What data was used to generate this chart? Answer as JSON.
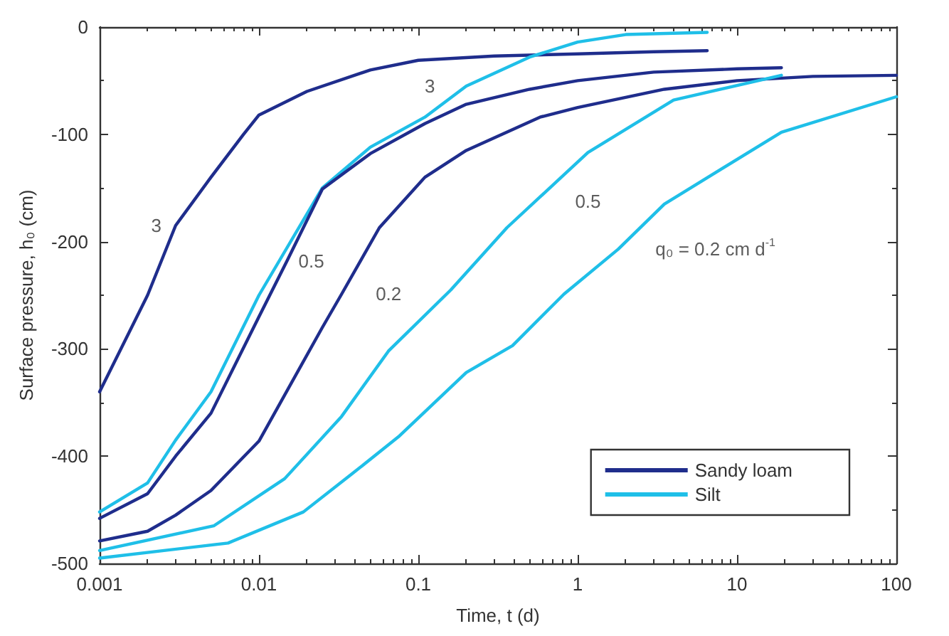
{
  "chart_data": {
    "type": "line",
    "xlabel": "Time, t (d)",
    "ylabel": "Surface pressure, h₀ (cm)",
    "log": "x",
    "xlim": [
      0.001,
      100
    ],
    "xticks": [
      0.001,
      0.01,
      0.1,
      1,
      10,
      100
    ],
    "ylim": [
      -500,
      0
    ],
    "yticks": [
      -500,
      -400,
      -300,
      -200,
      -100,
      0
    ],
    "grid": false,
    "legend": "bottom right",
    "marker": "none",
    "line_style": "solid",
    "series": [
      {
        "name": "Sandy loam",
        "color": "#1f2d8c",
        "x": [
          0.001,
          0.002,
          0.003,
          0.005,
          0.008,
          0.01,
          0.02,
          0.05,
          0.1,
          0.3,
          1,
          3,
          6.5
        ],
        "values": [
          -340,
          -250,
          -185,
          -140,
          -100,
          -82,
          -60,
          -40,
          -31,
          -27,
          -25,
          -23,
          -22
        ]
      },
      {
        "name": "Silt",
        "color": "#1fbfe8",
        "x": [
          0.001,
          0.002,
          0.003,
          0.005,
          0.01,
          0.025,
          0.05,
          0.11,
          0.2,
          0.5,
          1,
          2,
          6.5
        ],
        "values": [
          -452,
          -425,
          -385,
          -340,
          -250,
          -150,
          -112,
          -84,
          -55,
          -28,
          -14,
          -7,
          -5
        ]
      },
      {
        "color": "#1f2d8c",
        "x": [
          0.001,
          0.002,
          0.003,
          0.005,
          0.01,
          0.015,
          0.025,
          0.05,
          0.11,
          0.2,
          0.5,
          1,
          3,
          10,
          19
        ],
        "values": [
          -458,
          -435,
          -400,
          -360,
          -270,
          -218,
          -151,
          -118,
          -90,
          -72,
          -58,
          -50,
          -42,
          -39,
          -38
        ]
      },
      {
        "color": "#1f2d8c",
        "x": [
          0.001,
          0.002,
          0.003,
          0.005,
          0.01,
          0.025,
          0.033,
          0.057,
          0.11,
          0.2,
          0.58,
          1,
          3.5,
          10,
          30,
          100
        ],
        "values": [
          -479,
          -470,
          -455,
          -432,
          -386,
          -280,
          -249,
          -187,
          -140,
          -115,
          -84,
          -75,
          -58,
          -50,
          -46,
          -45
        ]
      },
      {
        "color": "#1fbfe8",
        "x": [
          0.001,
          0.0052,
          0.0145,
          0.033,
          0.065,
          0.16,
          0.36,
          1.16,
          4,
          19
        ],
        "values": [
          -488,
          -465,
          -421,
          -363,
          -302,
          -245,
          -187,
          -117,
          -68,
          -45
        ]
      },
      {
        "color": "#1fbfe8",
        "x": [
          0.001,
          0.0064,
          0.019,
          0.038,
          0.075,
          0.2,
          0.39,
          0.82,
          1.8,
          3.5,
          19,
          100
        ],
        "values": [
          -495,
          -481,
          -452,
          -417,
          -382,
          -322,
          -297,
          -249,
          -207,
          -165,
          -98,
          -65
        ]
      }
    ],
    "annotations": [
      {
        "text": "3",
        "x": 0.003,
        "y": -185
      },
      {
        "text": "3",
        "x": 0.2,
        "y": -55
      },
      {
        "text": "0.5",
        "x": 0.015,
        "y": -218
      },
      {
        "text": "0.2",
        "x": 0.033,
        "y": -249
      },
      {
        "text": "0.5",
        "x": 1.16,
        "y": -117
      },
      {
        "text": "q₀ = 0.2 cm d$^{-1}$",
        "x": 1.8,
        "y": -207
      }
    ]
  }
}
